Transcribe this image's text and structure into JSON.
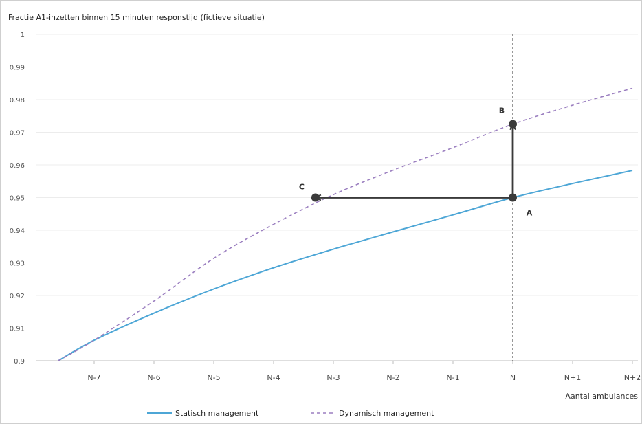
{
  "chart_data": {
    "type": "line",
    "title": "Fractie A1-inzetten binnen 15 minuten responstijd (fictieve situatie)",
    "xlabel": "Aantal ambulances",
    "ylabel": "",
    "categories": [
      "N-7",
      "N-6",
      "N-5",
      "N-4",
      "N-3",
      "N-2",
      "N-1",
      "N",
      "N+1",
      "N+2"
    ],
    "y_ticks": [
      "0.9",
      "0.91",
      "0.92",
      "0.93",
      "0.94",
      "0.95",
      "0.96",
      "0.97",
      "0.98",
      "0.99",
      "1"
    ],
    "ylim": [
      0.9,
      1.0
    ],
    "grid": true,
    "legend_position": "bottom",
    "series": [
      {
        "name": "Statisch management",
        "color": "#4da6d6",
        "style": "solid",
        "points": [
          {
            "x": "N-7.6",
            "y": 0.9
          },
          {
            "x": "N-7",
            "y": 0.9063
          },
          {
            "x": "N-6",
            "y": 0.9146
          },
          {
            "x": "N-5",
            "y": 0.922
          },
          {
            "x": "N-4",
            "y": 0.9285
          },
          {
            "x": "N-3",
            "y": 0.9342
          },
          {
            "x": "N-2",
            "y": 0.9395
          },
          {
            "x": "N-1",
            "y": 0.9447
          },
          {
            "x": "N",
            "y": 0.95
          },
          {
            "x": "N+1",
            "y": 0.9543
          },
          {
            "x": "N+2",
            "y": 0.9583
          }
        ]
      },
      {
        "name": "Dynamisch management",
        "color": "#9b7fc0",
        "style": "dashed",
        "points": [
          {
            "x": "N-7.6",
            "y": 0.9
          },
          {
            "x": "N-7",
            "y": 0.9063
          },
          {
            "x": "N-6",
            "y": 0.9183
          },
          {
            "x": "N-5",
            "y": 0.9314
          },
          {
            "x": "N-4",
            "y": 0.9418
          },
          {
            "x": "N-3",
            "y": 0.9509
          },
          {
            "x": "N-2",
            "y": 0.9584
          },
          {
            "x": "N-1",
            "y": 0.9653
          },
          {
            "x": "N",
            "y": 0.9725
          },
          {
            "x": "N+1",
            "y": 0.9783
          },
          {
            "x": "N+2",
            "y": 0.9835
          }
        ]
      }
    ],
    "annotations": [
      {
        "label": "A",
        "x": "N",
        "y": 0.95
      },
      {
        "label": "B",
        "x": "N",
        "y": 0.9725
      },
      {
        "label": "C",
        "x": "N-3.3",
        "y": 0.95
      }
    ],
    "arrows": [
      {
        "from": "A",
        "to": "B"
      },
      {
        "from": "A",
        "to": "C"
      }
    ],
    "reference_line": {
      "x": "N",
      "style": "dotted"
    }
  }
}
